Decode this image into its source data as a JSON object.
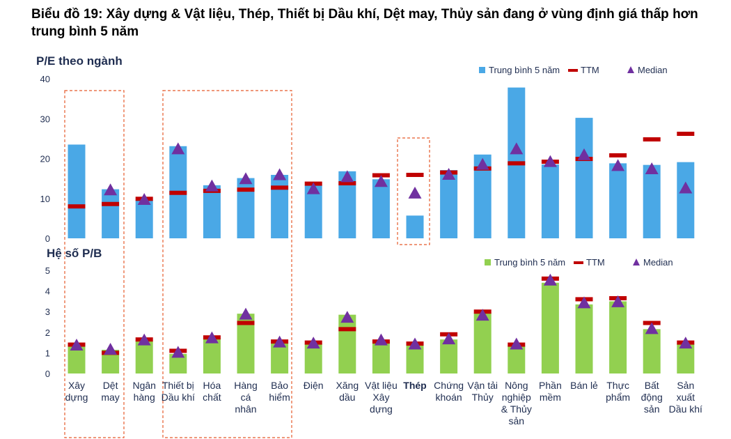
{
  "title": "Biểu đồ 19: Xây dựng & Vật liệu, Thép, Thiết bị Dầu khí, Dệt may, Thủy sản đang ở vùng định giá thấp hơn trung bình 5 năm",
  "colors": {
    "pe_bar": "#4aa8e6",
    "pb_bar": "#92d050",
    "ttm": "#c00000",
    "median": "#7030a0",
    "highlight_box": "#e55a2b",
    "text": "#1f2d50"
  },
  "chart_data": [
    {
      "type": "bar",
      "title": "P/E theo ngành",
      "ylim": [
        0,
        40
      ],
      "yticks": [
        0,
        10,
        20,
        30,
        40
      ],
      "legend": [
        "Trung bình 5 năm",
        "TTM",
        "Median"
      ],
      "legend_position": "top-right",
      "categories": [
        "Xây dựng",
        "Dệt may",
        "Ngân hàng",
        "Thiết bị Dầu khí",
        "Hóa chất",
        "Hàng cá nhân",
        "Bảo hiểm",
        "Điện",
        "Xăng dầu",
        "Vật liệu Xây dựng",
        "Thép",
        "Chứng khoán",
        "Vận tải Thủy",
        "Nông nghiệp & Thủy sản",
        "Phần mềm",
        "Bán lẻ",
        "Thực phẩm",
        "Bất động sản",
        "Sản xuất Dầu khí"
      ],
      "series": [
        {
          "name": "Trung bình 5 năm",
          "values": [
            23.5,
            12.3,
            9.6,
            23.1,
            13.3,
            15.1,
            15.9,
            13.3,
            16.8,
            14.8,
            5.7,
            17.1,
            21.0,
            37.8,
            18.5,
            30.2,
            18.8,
            18.4,
            19.1
          ]
        },
        {
          "name": "TTM",
          "values": [
            8.0,
            8.6,
            9.9,
            11.4,
            11.9,
            12.2,
            12.7,
            13.7,
            13.8,
            15.8,
            15.9,
            16.5,
            17.5,
            18.8,
            19.2,
            19.9,
            20.8,
            24.8,
            26.2
          ]
        },
        {
          "name": "Median",
          "values": [
            null,
            12.0,
            9.6,
            22.3,
            13.0,
            14.8,
            15.8,
            12.3,
            15.3,
            14.1,
            11.2,
            15.9,
            18.4,
            22.3,
            19.1,
            20.8,
            18.1,
            17.3,
            12.5
          ]
        }
      ]
    },
    {
      "type": "bar",
      "title": "Hệ số P/B",
      "ylim": [
        0,
        5
      ],
      "yticks": [
        0,
        1,
        2,
        3,
        4,
        5
      ],
      "legend": [
        "Trung bình 5 năm",
        "TTM",
        "Median"
      ],
      "legend_position": "top-right",
      "categories": [
        "Xây dựng",
        "Dệt may",
        "Ngân hàng",
        "Thiết bị Dầu khí",
        "Hóa chất",
        "Hàng cá nhân",
        "Bảo hiểm",
        "Điện",
        "Xăng dầu",
        "Vật liệu Xây dựng",
        "Thép",
        "Chứng khoán",
        "Vận tải Thủy",
        "Nông nghiệp & Thủy sản",
        "Phần mềm",
        "Bán lẻ",
        "Thực phẩm",
        "Bất động sản",
        "Sản xuất Dầu khí"
      ],
      "series": [
        {
          "name": "Trung bình 5 năm",
          "values": [
            1.4,
            1.15,
            1.6,
            0.95,
            1.7,
            2.9,
            1.5,
            1.45,
            2.85,
            1.55,
            1.4,
            1.65,
            2.95,
            1.35,
            4.4,
            3.35,
            3.5,
            2.15,
            1.45
          ]
        },
        {
          "name": "TTM",
          "values": [
            1.4,
            1.0,
            1.65,
            1.1,
            1.75,
            2.45,
            1.55,
            1.5,
            2.15,
            1.55,
            1.45,
            1.9,
            3.0,
            1.4,
            4.6,
            3.6,
            3.65,
            2.45,
            1.5
          ]
        },
        {
          "name": "Median",
          "values": [
            1.35,
            1.15,
            1.6,
            1.0,
            1.7,
            2.85,
            1.5,
            1.45,
            2.7,
            1.6,
            1.4,
            1.65,
            2.8,
            1.4,
            4.5,
            3.4,
            3.45,
            2.15,
            1.45
          ]
        }
      ]
    }
  ],
  "category_labels": [
    [
      "Xây",
      "dựng"
    ],
    [
      "Dệt",
      "may"
    ],
    [
      "Ngân",
      "hàng"
    ],
    [
      "Thiết bị",
      "Dầu khí"
    ],
    [
      "Hóa",
      "chất"
    ],
    [
      "Hàng",
      "cá",
      "nhân"
    ],
    [
      "Bảo",
      "hiểm"
    ],
    [
      "Điện"
    ],
    [
      "Xăng",
      "dầu"
    ],
    [
      "Vật liệu",
      "Xây",
      "dựng"
    ],
    [
      "Thép"
    ],
    [
      "Chứng",
      "khoán"
    ],
    [
      "Vận tải",
      "Thủy"
    ],
    [
      "Nông",
      "nghiệp",
      "& Thủy",
      "sản"
    ],
    [
      "Phần",
      "mềm"
    ],
    [
      "Bán lẻ"
    ],
    [
      "Thực",
      "phẩm"
    ],
    [
      "Bất",
      "động",
      "sản"
    ],
    [
      "Sản",
      "xuất",
      "Dầu khí"
    ]
  ],
  "bold_categories": [
    "Thép"
  ],
  "highlight_groups": [
    "Xây dựng, Dệt may",
    "Thiết bị Dầu khí, Hóa chất, Hàng cá nhân, Bảo hiểm",
    "Thép"
  ]
}
